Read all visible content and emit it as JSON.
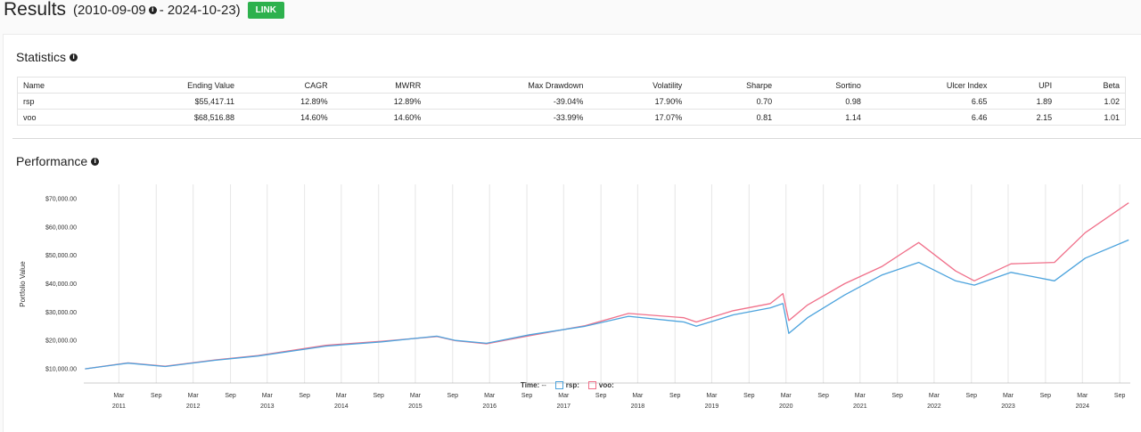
{
  "header": {
    "title": "Results",
    "date_start": "(2010-09-09",
    "date_end": "- 2024-10-23)",
    "link_label": "LINK"
  },
  "statistics": {
    "title": "Statistics",
    "columns": [
      "Name",
      "Ending Value",
      "CAGR",
      "MWRR",
      "Max Drawdown",
      "Volatility",
      "Sharpe",
      "Sortino",
      "Ulcer Index",
      "UPI",
      "Beta"
    ],
    "rows": [
      [
        "rsp",
        "$55,417.11",
        "12.89%",
        "12.89%",
        "-39.04%",
        "17.90%",
        "0.70",
        "0.98",
        "6.65",
        "1.89",
        "1.02"
      ],
      [
        "voo",
        "$68,516.88",
        "14.60%",
        "14.60%",
        "-33.99%",
        "17.07%",
        "0.81",
        "1.14",
        "6.46",
        "2.15",
        "1.01"
      ]
    ]
  },
  "performance": {
    "title": "Performance"
  },
  "colors": {
    "rsp": "#4ca3dd",
    "voo": "#f0708a",
    "link": "#2db14d"
  },
  "chart_data": {
    "type": "line",
    "ylabel": "Portfolio Value",
    "y_ticks": [
      "$10,000.00",
      "$20,000.00",
      "$30,000.00",
      "$40,000.00",
      "$50,000.00",
      "$60,000.00",
      "$70,000.00"
    ],
    "ylim": [
      5000,
      75000
    ],
    "x_ticks": [
      {
        "label": "Mar",
        "year": "2011"
      },
      {
        "label": "Sep",
        "year": ""
      },
      {
        "label": "Mar",
        "year": "2012"
      },
      {
        "label": "Sep",
        "year": ""
      },
      {
        "label": "Mar",
        "year": "2013"
      },
      {
        "label": "Sep",
        "year": ""
      },
      {
        "label": "Mar",
        "year": "2014"
      },
      {
        "label": "Sep",
        "year": ""
      },
      {
        "label": "Mar",
        "year": "2015"
      },
      {
        "label": "Sep",
        "year": ""
      },
      {
        "label": "Mar",
        "year": "2016"
      },
      {
        "label": "Sep",
        "year": ""
      },
      {
        "label": "Mar",
        "year": "2017"
      },
      {
        "label": "Sep",
        "year": ""
      },
      {
        "label": "Mar",
        "year": "2018"
      },
      {
        "label": "Sep",
        "year": ""
      },
      {
        "label": "Mar",
        "year": "2019"
      },
      {
        "label": "Sep",
        "year": ""
      },
      {
        "label": "Mar",
        "year": "2020"
      },
      {
        "label": "Sep",
        "year": ""
      },
      {
        "label": "Mar",
        "year": "2021"
      },
      {
        "label": "Sep",
        "year": ""
      },
      {
        "label": "Mar",
        "year": "2022"
      },
      {
        "label": "Sep",
        "year": ""
      },
      {
        "label": "Mar",
        "year": "2023"
      },
      {
        "label": "Sep",
        "year": ""
      },
      {
        "label": "Mar",
        "year": "2024"
      },
      {
        "label": "Sep",
        "year": ""
      }
    ],
    "x_range": [
      "2010-09-09",
      "2024-10-23"
    ],
    "legend": {
      "time_label": "Time:",
      "time_value": "--"
    },
    "series": [
      {
        "name": "rsp:",
        "x": [
          "2010-09",
          "2011-04",
          "2011-10",
          "2012-06",
          "2013-01",
          "2013-12",
          "2014-09",
          "2015-06",
          "2015-09",
          "2016-02",
          "2016-09",
          "2017-06",
          "2018-01",
          "2018-10",
          "2018-12",
          "2019-06",
          "2019-12",
          "2020-02",
          "2020-03",
          "2020-06",
          "2020-12",
          "2021-06",
          "2021-12",
          "2022-06",
          "2022-09",
          "2023-03",
          "2023-10",
          "2024-03",
          "2024-10"
        ],
        "values": [
          10000,
          12000,
          10800,
          13000,
          14500,
          18000,
          19500,
          21500,
          20000,
          19000,
          22000,
          25000,
          28500,
          26500,
          25000,
          29000,
          31500,
          33000,
          22500,
          28000,
          36000,
          43000,
          47500,
          41000,
          39500,
          44000,
          41000,
          49000,
          55400
        ]
      },
      {
        "name": "voo:",
        "x": [
          "2010-09",
          "2011-04",
          "2011-10",
          "2012-06",
          "2013-01",
          "2013-12",
          "2014-09",
          "2015-06",
          "2015-09",
          "2016-02",
          "2016-09",
          "2017-06",
          "2018-01",
          "2018-10",
          "2018-12",
          "2019-06",
          "2019-12",
          "2020-02",
          "2020-03",
          "2020-06",
          "2020-12",
          "2021-06",
          "2021-12",
          "2022-06",
          "2022-09",
          "2023-03",
          "2023-10",
          "2024-03",
          "2024-10"
        ],
        "values": [
          10000,
          12100,
          10900,
          13100,
          14700,
          18300,
          19700,
          21400,
          19900,
          18800,
          21700,
          25200,
          29500,
          28000,
          26500,
          30500,
          33000,
          36500,
          27000,
          32500,
          40000,
          46000,
          54500,
          44500,
          41000,
          47000,
          47500,
          58000,
          68500
        ]
      }
    ]
  }
}
